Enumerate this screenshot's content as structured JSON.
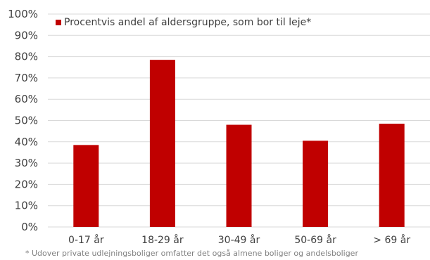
{
  "chart_data": {
    "type": "bar",
    "categories": [
      "0-17 år",
      "18-29 år",
      "30-49 år",
      "50-69 år",
      "> 69 år"
    ],
    "series": [
      {
        "name": "Procentvis andel af aldersgruppe, som bor til leje*",
        "values": [
          38.5,
          78.5,
          48,
          40.5,
          48.5
        ]
      }
    ],
    "ylim": [
      0,
      100
    ],
    "yticks": [
      0,
      10,
      20,
      30,
      40,
      50,
      60,
      70,
      80,
      90,
      100
    ],
    "ytick_labels": [
      "0%",
      "10%",
      "20%",
      "30%",
      "40%",
      "50%",
      "60%",
      "70%",
      "80%",
      "90%",
      "100%"
    ],
    "grid": true,
    "legend_position": "top-left",
    "bar_color": "#c00000",
    "grid_color": "#d9d9d9",
    "footnote": "* Udover private udlejningsboliger omfatter det også almene boliger og andelsboliger"
  }
}
